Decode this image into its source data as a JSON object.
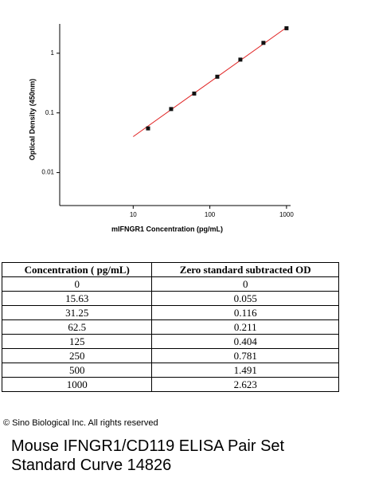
{
  "chart_data": {
    "type": "scatter",
    "x_label": "mIFNGR1 Concentration (pg/mL)",
    "y_label": "Optical Density (450nm)",
    "log_x": true,
    "log_y": true,
    "xlim": [
      1.1,
      1130
    ],
    "ylim": [
      0.0028,
      3.1
    ],
    "xticks": [
      10,
      100,
      1000
    ],
    "yticks": [
      0.01,
      0.1,
      1
    ],
    "series": [
      {
        "color": "#111111",
        "x": [
          15.63,
          31.25,
          62.5,
          125,
          250,
          500,
          1000
        ],
        "values": [
          0.055,
          0.116,
          0.211,
          0.404,
          0.781,
          1.491,
          2.623
        ]
      }
    ],
    "fit_line": {
      "color": "#e02020",
      "x": [
        10,
        1000
      ],
      "values": [
        0.04,
        2.7
      ]
    }
  },
  "table": {
    "header": [
      "Concentration ( pg/mL)",
      "Zero standard subtracted OD"
    ],
    "rows": [
      [
        "0",
        "0"
      ],
      [
        "15.63",
        "0.055"
      ],
      [
        "31.25",
        "0.116"
      ],
      [
        "62.5",
        "0.211"
      ],
      [
        "125",
        "0.404"
      ],
      [
        "250",
        "0.781"
      ],
      [
        "500",
        "1.491"
      ],
      [
        "1000",
        "2.623"
      ]
    ]
  },
  "copyright": "© Sino Biological Inc. All rights reserved",
  "caption": [
    "Mouse IFNGR1/CD119 ELISA Pair Set",
    "Standard Curve 14826"
  ]
}
